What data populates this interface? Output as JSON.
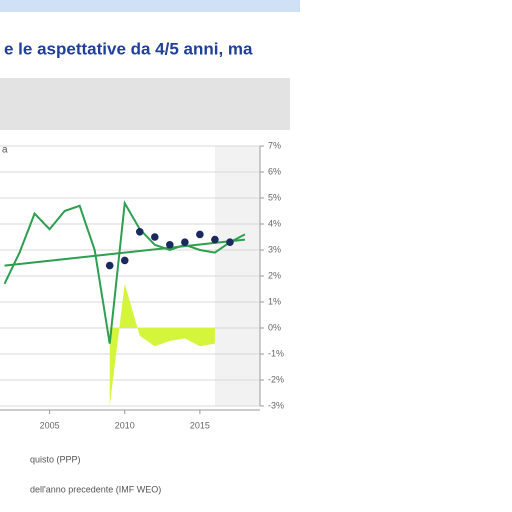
{
  "chart_data": {
    "type": "line",
    "title": "e le aspettative da 4/5 anni, ma",
    "panel_label": "a",
    "x": [
      2002,
      2003,
      2004,
      2005,
      2006,
      2007,
      2008,
      2009,
      2010,
      2011,
      2012,
      2013,
      2014,
      2015,
      2016,
      2017,
      2018
    ],
    "series": [
      {
        "name": "quisto (PPP)",
        "color": "#2e9e4f",
        "style": "line",
        "values": [
          1.7,
          2.9,
          4.4,
          3.8,
          4.5,
          4.7,
          3.0,
          -0.6,
          4.8,
          3.8,
          3.2,
          3.0,
          3.2,
          3.0,
          2.9,
          3.3,
          3.6
        ]
      },
      {
        "name": "dell'anno precedente (IMF WEO)",
        "color": "#1a2a5e",
        "style": "dots",
        "values": [
          null,
          null,
          null,
          null,
          null,
          null,
          null,
          2.4,
          2.6,
          3.7,
          3.5,
          3.2,
          3.3,
          3.6,
          3.4,
          3.3,
          null
        ]
      },
      {
        "color": "#d4f53c",
        "style": "area",
        "values": [
          null,
          null,
          null,
          null,
          null,
          null,
          null,
          -3.0,
          1.7,
          -0.3,
          -0.7,
          -0.5,
          -0.4,
          -0.7,
          -0.6,
          null,
          null
        ]
      },
      {
        "color": "#2e9e4f",
        "style": "line",
        "x": [
          2002,
          2018
        ],
        "values": [
          2.4,
          3.4
        ]
      }
    ],
    "xlim": [
      2001.7,
      2019
    ],
    "xticks": [
      2005,
      2010,
      2015
    ],
    "ylim": [
      -3,
      7
    ],
    "yticks": [
      {
        "value": 7,
        "label": "7%"
      },
      {
        "value": 6,
        "label": "6%"
      },
      {
        "value": 5,
        "label": "5%"
      },
      {
        "value": 4,
        "label": "4%"
      },
      {
        "value": 3,
        "label": "3%"
      },
      {
        "value": 2,
        "label": "2%"
      },
      {
        "value": 1,
        "label": "1%"
      },
      {
        "value": 0,
        "label": "0%"
      },
      {
        "value": -1,
        "label": "-1%"
      },
      {
        "value": -2,
        "label": "-2%"
      },
      {
        "value": -3,
        "label": "-3%"
      }
    ],
    "grid": true
  }
}
